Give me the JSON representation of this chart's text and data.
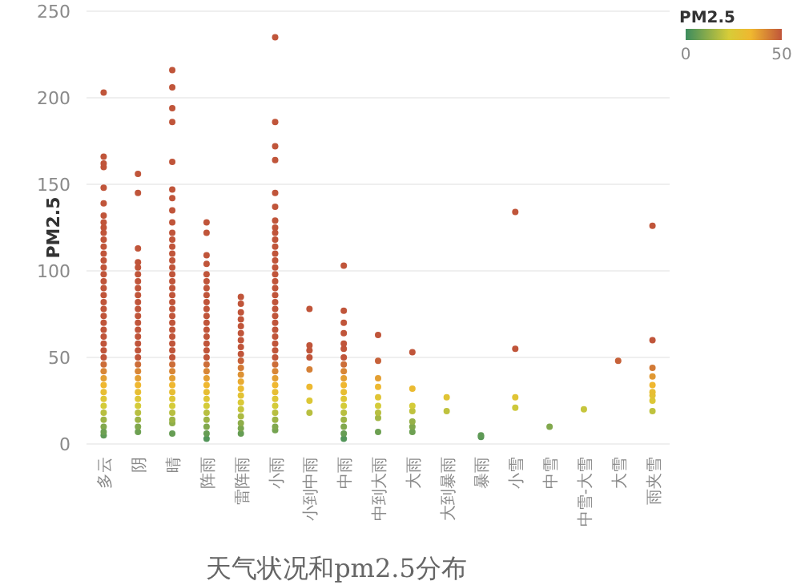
{
  "chart_data": {
    "type": "scatter",
    "title": "天气状况和pm2.5分布",
    "ylabel": "PM2.5",
    "clabel": "PM2.5",
    "categories": [
      "多云",
      "阴",
      "晴",
      "阵雨",
      "雷阵雨",
      "小雨",
      "小到中雨",
      "中雨",
      "中到大雨",
      "大雨",
      "大到暴雨",
      "暴雨",
      "小雪",
      "中雪",
      "中雪-大雪",
      "大雪",
      "雨夹雪"
    ],
    "ylim": [
      0,
      250
    ],
    "yticks": [
      0,
      50,
      100,
      150,
      200,
      250
    ],
    "clim": [
      0,
      50
    ],
    "cticks": [
      0,
      50
    ],
    "grid": "y",
    "marker": "circle",
    "series": [
      {
        "x": [
          "多云",
          "多云",
          "多云",
          "多云",
          "多云",
          "多云",
          "多云",
          "多云",
          "多云",
          "多云",
          "多云",
          "多云",
          "多云",
          "多云",
          "多云",
          "多云",
          "多云",
          "多云",
          "多云",
          "多云",
          "多云",
          "多云",
          "多云",
          "多云",
          "多云",
          "多云",
          "多云",
          "多云",
          "多云",
          "多云",
          "多云",
          "多云",
          "多云",
          "多云",
          "多云",
          "多云",
          "多云",
          "多云",
          "多云",
          "多云",
          "阴",
          "阴",
          "阴",
          "阴",
          "阴",
          "阴",
          "阴",
          "阴",
          "阴",
          "阴",
          "阴",
          "阴",
          "阴",
          "阴",
          "阴",
          "阴",
          "阴",
          "阴",
          "阴",
          "阴",
          "阴",
          "阴",
          "阴",
          "阴",
          "阴",
          "阴",
          "阴",
          "阴",
          "阴",
          "晴",
          "晴",
          "晴",
          "晴",
          "晴",
          "晴",
          "晴",
          "晴",
          "晴",
          "晴",
          "晴",
          "晴",
          "晴",
          "晴",
          "晴",
          "晴",
          "晴",
          "晴",
          "晴",
          "晴",
          "晴",
          "晴",
          "晴",
          "晴",
          "晴",
          "晴",
          "晴",
          "晴",
          "晴",
          "晴",
          "晴",
          "晴",
          "晴",
          "晴",
          "晴",
          "晴",
          "晴",
          "晴",
          "晴",
          "阵雨",
          "阵雨",
          "阵雨",
          "阵雨",
          "阵雨",
          "阵雨",
          "阵雨",
          "阵雨",
          "阵雨",
          "阵雨",
          "阵雨",
          "阵雨",
          "阵雨",
          "阵雨",
          "阵雨",
          "阵雨",
          "阵雨",
          "阵雨",
          "阵雨",
          "阵雨",
          "阵雨",
          "阵雨",
          "阵雨",
          "阵雨",
          "阵雨",
          "阵雨",
          "阵雨",
          "阵雨",
          "阵雨",
          "雷阵雨",
          "雷阵雨",
          "雷阵雨",
          "雷阵雨",
          "雷阵雨",
          "雷阵雨",
          "雷阵雨",
          "雷阵雨",
          "雷阵雨",
          "雷阵雨",
          "雷阵雨",
          "雷阵雨",
          "雷阵雨",
          "雷阵雨",
          "雷阵雨",
          "雷阵雨",
          "雷阵雨",
          "雷阵雨",
          "雷阵雨",
          "雷阵雨",
          "雷阵雨",
          "小雨",
          "小雨",
          "小雨",
          "小雨",
          "小雨",
          "小雨",
          "小雨",
          "小雨",
          "小雨",
          "小雨",
          "小雨",
          "小雨",
          "小雨",
          "小雨",
          "小雨",
          "小雨",
          "小雨",
          "小雨",
          "小雨",
          "小雨",
          "小雨",
          "小雨",
          "小雨",
          "小雨",
          "小雨",
          "小雨",
          "小雨",
          "小雨",
          "小雨",
          "小雨",
          "小雨",
          "小雨",
          "小雨",
          "小雨",
          "小雨",
          "小雨",
          "小雨",
          "小雨",
          "小到中雨",
          "小到中雨",
          "小到中雨",
          "小到中雨",
          "小到中雨",
          "小到中雨",
          "小到中雨",
          "小到中雨",
          "中雨",
          "中雨",
          "中雨",
          "中雨",
          "中雨",
          "中雨",
          "中雨",
          "中雨",
          "中雨",
          "中雨",
          "中雨",
          "中雨",
          "中雨",
          "中雨",
          "中雨",
          "中雨",
          "中雨",
          "中雨",
          "中雨",
          "中到大雨",
          "中到大雨",
          "中到大雨",
          "中到大雨",
          "中到大雨",
          "中到大雨",
          "中到大雨",
          "中到大雨",
          "中到大雨",
          "大雨",
          "大雨",
          "大雨",
          "大雨",
          "大雨",
          "大雨",
          "大雨",
          "大到暴雨",
          "大到暴雨",
          "暴雨",
          "暴雨",
          "小雪",
          "小雪",
          "小雪",
          "小雪",
          "中雪",
          "中雪-大雪",
          "大雪",
          "雨夹雪",
          "雨夹雪",
          "雨夹雪",
          "雨夹雪",
          "雨夹雪",
          "雨夹雪",
          "雨夹雪",
          "雨夹雪",
          "雨夹雪"
        ],
        "values": [
          5,
          10,
          14,
          18,
          22,
          26,
          30,
          34,
          38,
          42,
          46,
          50,
          54,
          58,
          62,
          66,
          70,
          74,
          78,
          82,
          86,
          90,
          94,
          98,
          102,
          106,
          110,
          114,
          118,
          122,
          125,
          128,
          132,
          139,
          148,
          160,
          162,
          166,
          203,
          7,
          7,
          10,
          14,
          18,
          22,
          26,
          30,
          34,
          38,
          42,
          46,
          50,
          54,
          58,
          62,
          66,
          70,
          74,
          78,
          82,
          86,
          90,
          94,
          98,
          102,
          105,
          113,
          145,
          156,
          6,
          12,
          14,
          18,
          22,
          26,
          30,
          34,
          38,
          42,
          46,
          50,
          54,
          58,
          62,
          66,
          70,
          74,
          78,
          82,
          86,
          90,
          94,
          98,
          102,
          106,
          110,
          114,
          118,
          122,
          128,
          135,
          142,
          147,
          163,
          186,
          194,
          206,
          216,
          3,
          6,
          10,
          14,
          18,
          22,
          26,
          30,
          34,
          38,
          42,
          46,
          50,
          54,
          58,
          62,
          66,
          70,
          74,
          78,
          82,
          86,
          90,
          94,
          98,
          104,
          109,
          122,
          128,
          6,
          9,
          12,
          16,
          20,
          24,
          28,
          32,
          36,
          40,
          44,
          48,
          52,
          56,
          60,
          64,
          68,
          72,
          76,
          81,
          85,
          8,
          10,
          14,
          18,
          22,
          26,
          30,
          34,
          38,
          42,
          46,
          50,
          54,
          58,
          62,
          66,
          70,
          74,
          78,
          82,
          86,
          90,
          94,
          98,
          102,
          106,
          110,
          114,
          118,
          122,
          125,
          129,
          137,
          145,
          164,
          172,
          186,
          235,
          18,
          25,
          33,
          43,
          50,
          54,
          57,
          78,
          3,
          6,
          10,
          14,
          18,
          22,
          26,
          30,
          34,
          38,
          42,
          46,
          50,
          55,
          58,
          64,
          70,
          77,
          103,
          7,
          15,
          18,
          22,
          27,
          33,
          38,
          48,
          63,
          7,
          10,
          13,
          19,
          22,
          32,
          53,
          19,
          27,
          4,
          5,
          21,
          27,
          55,
          134,
          10,
          20,
          48,
          19,
          25,
          28,
          30,
          34,
          39,
          44,
          60,
          126
        ],
        "cvalues": [
          5,
          10,
          14,
          18,
          22,
          26,
          30,
          34,
          38,
          42,
          46,
          50,
          50,
          50,
          50,
          50,
          50,
          50,
          50,
          50,
          50,
          50,
          50,
          50,
          50,
          50,
          50,
          50,
          50,
          50,
          50,
          50,
          50,
          50,
          50,
          50,
          50,
          50,
          50,
          7,
          7,
          10,
          14,
          18,
          22,
          26,
          30,
          34,
          38,
          42,
          46,
          50,
          50,
          50,
          50,
          50,
          50,
          50,
          50,
          50,
          50,
          50,
          50,
          50,
          50,
          50,
          50,
          50,
          50,
          6,
          12,
          14,
          18,
          22,
          26,
          30,
          34,
          38,
          42,
          46,
          50,
          50,
          50,
          50,
          50,
          50,
          50,
          50,
          50,
          50,
          50,
          50,
          50,
          50,
          50,
          50,
          50,
          50,
          50,
          50,
          50,
          50,
          50,
          50,
          50,
          50,
          50,
          50,
          3,
          6,
          10,
          14,
          18,
          22,
          26,
          30,
          34,
          38,
          42,
          46,
          50,
          50,
          50,
          50,
          50,
          50,
          50,
          50,
          50,
          50,
          50,
          50,
          50,
          50,
          50,
          50,
          50,
          6,
          9,
          12,
          16,
          20,
          24,
          28,
          32,
          36,
          40,
          44,
          48,
          50,
          50,
          50,
          50,
          50,
          50,
          50,
          50,
          50,
          8,
          10,
          14,
          18,
          22,
          26,
          30,
          34,
          38,
          42,
          46,
          50,
          50,
          50,
          50,
          50,
          50,
          50,
          50,
          50,
          50,
          50,
          50,
          50,
          50,
          50,
          50,
          50,
          50,
          50,
          50,
          50,
          50,
          50,
          50,
          50,
          50,
          50,
          18,
          25,
          33,
          43,
          50,
          50,
          50,
          50,
          3,
          6,
          10,
          14,
          18,
          22,
          26,
          30,
          34,
          38,
          42,
          46,
          50,
          50,
          50,
          50,
          50,
          50,
          50,
          7,
          15,
          18,
          22,
          27,
          33,
          38,
          48,
          50,
          7,
          10,
          13,
          19,
          22,
          32,
          50,
          19,
          27,
          4,
          5,
          21,
          27,
          50,
          50,
          10,
          20,
          48,
          19,
          25,
          28,
          30,
          34,
          39,
          44,
          50,
          50
        ]
      }
    ]
  }
}
